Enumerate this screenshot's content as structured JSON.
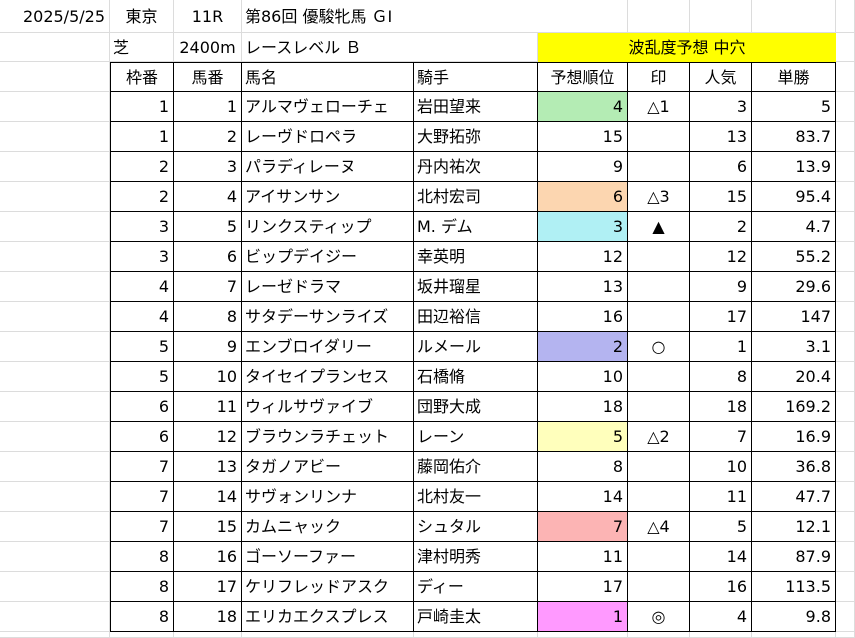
{
  "info": {
    "date": "2025/5/25",
    "venue": "東京",
    "race_no": "11R",
    "race_name": "第86回 優駿牝馬 ＧⅠ",
    "surface": "芝",
    "distance": "2400m",
    "level": "レースレベル Ｂ",
    "chaos": "波乱度予想 中穴"
  },
  "headers": [
    "枠番",
    "馬番",
    "馬名",
    "騎手",
    "予想順位",
    "印",
    "人気",
    "単勝"
  ],
  "colors": {
    "chaos_bg": "#ffff00",
    "grid": "#dcdcdc",
    "rank1": "#ff99ff",
    "rank2": "#b4b4f0",
    "rank3": "#b0f0f4",
    "rank4": "#b4ecb4",
    "rank5": "#ffffbc",
    "rank6": "#fcd6b0",
    "rank7": "#fcb4b4"
  },
  "rows": [
    {
      "waku": "1",
      "uma": "1",
      "name": "アルマヴェローチェ",
      "jockey": "岩田望来",
      "rank": "4",
      "mark": "△1",
      "pop": "3",
      "odds": "5",
      "hl": "#b4ecb4"
    },
    {
      "waku": "1",
      "uma": "2",
      "name": "レーヴドロペラ",
      "jockey": "大野拓弥",
      "rank": "15",
      "mark": "",
      "pop": "13",
      "odds": "83.7",
      "hl": ""
    },
    {
      "waku": "2",
      "uma": "3",
      "name": "パラディレーヌ",
      "jockey": "丹内祐次",
      "rank": "9",
      "mark": "",
      "pop": "6",
      "odds": "13.9",
      "hl": ""
    },
    {
      "waku": "2",
      "uma": "4",
      "name": "アイサンサン",
      "jockey": "北村宏司",
      "rank": "6",
      "mark": "△3",
      "pop": "15",
      "odds": "95.4",
      "hl": "#fcd6b0"
    },
    {
      "waku": "3",
      "uma": "5",
      "name": "リンクスティップ",
      "jockey": "M. デム",
      "rank": "3",
      "mark": "▲",
      "pop": "2",
      "odds": "4.7",
      "hl": "#b0f0f4"
    },
    {
      "waku": "3",
      "uma": "6",
      "name": "ビップデイジー",
      "jockey": "幸英明",
      "rank": "12",
      "mark": "",
      "pop": "12",
      "odds": "55.2",
      "hl": ""
    },
    {
      "waku": "4",
      "uma": "7",
      "name": "レーゼドラマ",
      "jockey": "坂井瑠星",
      "rank": "13",
      "mark": "",
      "pop": "9",
      "odds": "29.6",
      "hl": ""
    },
    {
      "waku": "4",
      "uma": "8",
      "name": "サタデーサンライズ",
      "jockey": "田辺裕信",
      "rank": "16",
      "mark": "",
      "pop": "17",
      "odds": "147",
      "hl": ""
    },
    {
      "waku": "5",
      "uma": "9",
      "name": "エンブロイダリー",
      "jockey": "ルメール",
      "rank": "2",
      "mark": "○",
      "pop": "1",
      "odds": "3.1",
      "hl": "#b4b4f0"
    },
    {
      "waku": "5",
      "uma": "10",
      "name": "タイセイプランセス",
      "jockey": "石橋脩",
      "rank": "10",
      "mark": "",
      "pop": "8",
      "odds": "20.4",
      "hl": ""
    },
    {
      "waku": "6",
      "uma": "11",
      "name": "ウィルサヴァイブ",
      "jockey": "団野大成",
      "rank": "18",
      "mark": "",
      "pop": "18",
      "odds": "169.2",
      "hl": ""
    },
    {
      "waku": "6",
      "uma": "12",
      "name": "ブラウンラチェット",
      "jockey": "レーン",
      "rank": "5",
      "mark": "△2",
      "pop": "7",
      "odds": "16.9",
      "hl": "#ffffbc"
    },
    {
      "waku": "7",
      "uma": "13",
      "name": "タガノアビー",
      "jockey": "藤岡佑介",
      "rank": "8",
      "mark": "",
      "pop": "10",
      "odds": "36.8",
      "hl": ""
    },
    {
      "waku": "7",
      "uma": "14",
      "name": "サヴォンリンナ",
      "jockey": "北村友一",
      "rank": "14",
      "mark": "",
      "pop": "11",
      "odds": "47.7",
      "hl": ""
    },
    {
      "waku": "7",
      "uma": "15",
      "name": "カムニャック",
      "jockey": "シュタル",
      "rank": "7",
      "mark": "△4",
      "pop": "5",
      "odds": "12.1",
      "hl": "#fcb4b4"
    },
    {
      "waku": "8",
      "uma": "16",
      "name": "ゴーソーファー",
      "jockey": "津村明秀",
      "rank": "11",
      "mark": "",
      "pop": "14",
      "odds": "87.9",
      "hl": ""
    },
    {
      "waku": "8",
      "uma": "17",
      "name": "ケリフレッドアスク",
      "jockey": "ディー",
      "rank": "17",
      "mark": "",
      "pop": "16",
      "odds": "113.5",
      "hl": ""
    },
    {
      "waku": "8",
      "uma": "18",
      "name": "エリカエクスプレス",
      "jockey": "戸崎圭太",
      "rank": "1",
      "mark": "◎",
      "pop": "4",
      "odds": "9.8",
      "hl": "#ff99ff"
    }
  ]
}
